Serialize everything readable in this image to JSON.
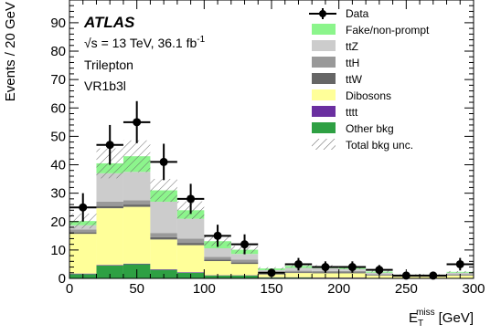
{
  "chart_data": {
    "type": "bar",
    "stacked": true,
    "xlabel": "E_T^miss [GeV]",
    "xlabel_main": "E",
    "xlabel_sup": "miss",
    "xlabel_sub": "T",
    "xlabel_unit": "[GeV]",
    "ylabel": "Events / 20 GeV",
    "xlim": [
      0,
      300
    ],
    "ylim": [
      0,
      98
    ],
    "bin_width": 20,
    "bin_edges": [
      0,
      20,
      40,
      60,
      80,
      100,
      120,
      140,
      160,
      180,
      200,
      220,
      240,
      260,
      280,
      300
    ],
    "x_ticks": [
      0,
      50,
      100,
      150,
      200,
      250,
      300
    ],
    "x_tick_labels": [
      "0",
      "50",
      "100",
      "150",
      "200",
      "250",
      "300"
    ],
    "y_ticks": [
      0,
      10,
      20,
      30,
      40,
      50,
      60,
      70,
      80,
      90
    ],
    "y_tick_labels": [
      "0",
      "10",
      "20",
      "30",
      "40",
      "50",
      "60",
      "70",
      "80",
      "90"
    ],
    "series": [
      {
        "name": "Other bkg",
        "color": "#2ea043",
        "values": [
          1.5,
          4.5,
          5,
          3,
          2,
          1,
          1,
          0.3,
          0.3,
          0.2,
          0.2,
          0.2,
          0.1,
          0.1,
          0.2
        ]
      },
      {
        "name": "t̅t̅t̅t̅",
        "display": "tttt",
        "color": "#6a2fa0",
        "values": [
          0.2,
          0.2,
          0.2,
          0.2,
          0.2,
          0.1,
          0.1,
          0.1,
          0.1,
          0.1,
          0.1,
          0,
          0,
          0,
          0
        ]
      },
      {
        "name": "Dibosons",
        "color": "#ffff99",
        "values": [
          14,
          20,
          20,
          10.5,
          9.5,
          5,
          4,
          1,
          1.5,
          1.5,
          1.5,
          0.8,
          0.5,
          0.5,
          0.8
        ]
      },
      {
        "name": "ttW",
        "color": "#666666",
        "values": [
          0.5,
          0.8,
          0.8,
          0.8,
          0.8,
          0.5,
          0.5,
          0.3,
          0.3,
          0.3,
          0.3,
          0.2,
          0.1,
          0.1,
          0.2
        ]
      },
      {
        "name": "ttH",
        "color": "#999999",
        "values": [
          1,
          1.5,
          1.5,
          1.5,
          1.5,
          1,
          1,
          0.5,
          0.5,
          0.5,
          0.5,
          0.3,
          0.2,
          0.2,
          0.3
        ]
      },
      {
        "name": "ttZ",
        "color": "#cccccc",
        "values": [
          1.5,
          10,
          10,
          11,
          7,
          3,
          2,
          0.7,
          1,
          1,
          0.7,
          0.5,
          0.2,
          0.2,
          0.5
        ]
      },
      {
        "name": "Fake/non-prompt",
        "color": "#8cf58c",
        "values": [
          1.5,
          3.5,
          5.5,
          4,
          3,
          2.5,
          1.5,
          0.6,
          0.7,
          0.6,
          0.5,
          0.4,
          0.2,
          0.2,
          0.3
        ]
      }
    ],
    "uncertainty": {
      "name": "Total bkg unc.",
      "fraction": 0.13
    },
    "data": {
      "name": "Data",
      "x": [
        10,
        30,
        50,
        70,
        90,
        110,
        130,
        150,
        170,
        190,
        210,
        230,
        250,
        270,
        290
      ],
      "y": [
        25,
        47,
        55,
        41,
        28,
        15,
        12,
        2,
        5,
        4,
        4,
        3,
        1,
        1,
        5
      ],
      "err": [
        5,
        7,
        7.4,
        6.4,
        5.3,
        3.9,
        3.5,
        1.4,
        2.2,
        2,
        2,
        1.7,
        1,
        1,
        2.2
      ]
    },
    "legend_position": "top-right",
    "legend": [
      "Data",
      "Fake/non-prompt",
      "ttZ",
      "ttH",
      "ttW",
      "Dibosons",
      "tttt",
      "Other bkg",
      "Total bkg unc."
    ],
    "grid": false
  },
  "annotations": {
    "experiment": "ATLAS",
    "energy": "√s = 13 TeV, 36.1 fb",
    "energy_sup": "-1",
    "channel": "Trilepton",
    "region": "VR1b3l"
  },
  "legend_labels": {
    "data": "Data",
    "fake": "Fake/non-prompt",
    "ttz": "ttZ",
    "tth": "ttH",
    "ttw": "ttW",
    "dibosons": "Dibosons",
    "tttt": "tttt",
    "other": "Other bkg",
    "unc": "Total bkg unc."
  }
}
